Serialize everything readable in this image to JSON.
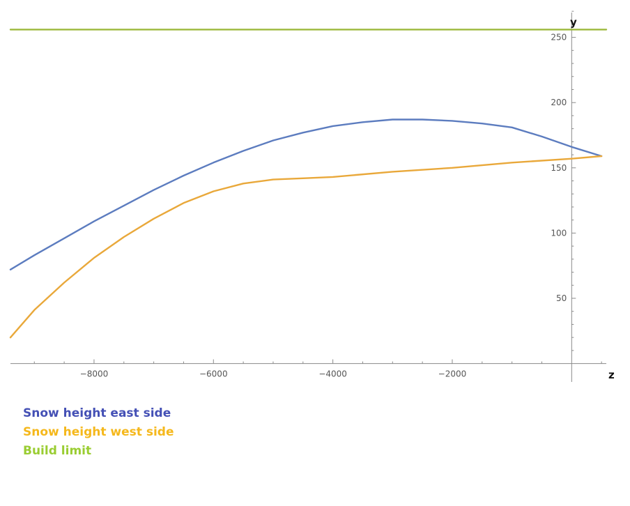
{
  "chart_data": {
    "type": "line",
    "xlabel": "z",
    "ylabel": "y",
    "xlim": [
      -9400,
      580
    ],
    "ylim": [
      -15,
      272
    ],
    "x_ticks": [
      -8000,
      -6000,
      -4000,
      -2000
    ],
    "x_tick_labels": [
      "−8000",
      "−6000",
      "−4000",
      "−2000"
    ],
    "y_ticks": [
      50,
      100,
      150,
      200,
      250
    ],
    "y_tick_labels": [
      "50",
      "100",
      "150",
      "200",
      "250"
    ],
    "grid": false,
    "legend": "bottom-left",
    "series": [
      {
        "name": "Snow height east side",
        "color": "#5c7cbf",
        "legend_color": "#4450b5",
        "x": [
          -9400,
          -9000,
          -8500,
          -8000,
          -7500,
          -7000,
          -6500,
          -6000,
          -5500,
          -5000,
          -4500,
          -4000,
          -3500,
          -3000,
          -2500,
          -2000,
          -1500,
          -1000,
          -500,
          0,
          500
        ],
        "y": [
          72,
          83,
          96,
          109,
          121,
          133,
          144,
          154,
          163,
          171,
          177,
          182,
          185,
          187,
          187,
          186,
          184,
          181,
          174,
          166,
          159
        ]
      },
      {
        "name": "Snow height west side",
        "color": "#e9a83a",
        "legend_color": "#f5b81c",
        "x": [
          -9400,
          -9000,
          -8500,
          -8000,
          -7500,
          -7000,
          -6500,
          -6000,
          -5500,
          -5000,
          -4500,
          -4000,
          -3000,
          -2000,
          -1000,
          0,
          500
        ],
        "y": [
          20,
          41,
          62,
          81,
          97,
          111,
          123,
          132,
          138,
          141,
          142,
          143,
          147,
          150,
          154,
          157,
          159
        ]
      },
      {
        "name": "Build limit",
        "color": "#9cb83a",
        "legend_color": "#9acd32",
        "x": [
          -9400,
          580
        ],
        "y": [
          256,
          256
        ]
      }
    ]
  }
}
